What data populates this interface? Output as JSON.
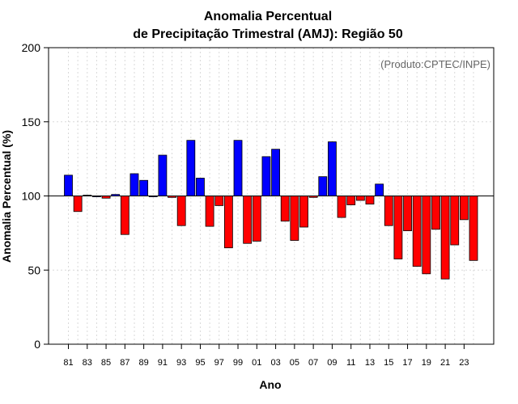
{
  "chart_data": {
    "type": "bar",
    "title": "Anomalia Percentual",
    "subtitle": "de Precipitação Trimestral (AMJ): Região 50",
    "xlabel": "Ano",
    "ylabel": "Anomalia Percentual (%)",
    "credit": "(Produto:CPTEC/INPE)",
    "ylim": [
      0,
      200
    ],
    "yticks": [
      "0",
      "50",
      "100",
      "150",
      "200"
    ],
    "baseline": 100,
    "categories": [
      "1981",
      "1982",
      "1983",
      "1984",
      "1985",
      "1986",
      "1987",
      "1988",
      "1989",
      "1990",
      "1991",
      "1992",
      "1993",
      "1994",
      "1995",
      "1996",
      "1997",
      "1998",
      "1999",
      "2000",
      "2001",
      "2002",
      "2003",
      "2004",
      "2005",
      "2006",
      "2007",
      "2008",
      "2009",
      "2010",
      "2011",
      "2012",
      "2013",
      "2014",
      "2015",
      "2016",
      "2017",
      "2018",
      "2019",
      "2020",
      "2021",
      "2022",
      "2023",
      "2024"
    ],
    "xtick_labels": [
      "81",
      "83",
      "85",
      "87",
      "89",
      "91",
      "93",
      "95",
      "97",
      "99",
      "01",
      "03",
      "05",
      "07",
      "09",
      "11",
      "13",
      "15",
      "17",
      "19",
      "21",
      "23"
    ],
    "values": [
      114,
      89.5,
      100.5,
      100,
      98.5,
      101,
      74,
      115,
      110.5,
      100,
      127.5,
      99,
      80,
      137.5,
      112,
      79.5,
      93.5,
      65,
      137.5,
      68,
      69.5,
      126.5,
      131.5,
      83,
      70,
      79,
      99,
      113,
      136.5,
      85.5,
      94,
      97,
      94.5,
      108,
      80,
      57.5,
      76.5,
      52.5,
      47.5,
      77.5,
      44,
      67,
      84,
      56.5
    ],
    "grid": true,
    "colors": {
      "above": "#0000ff",
      "below": "#ff0000",
      "edge": "#000000",
      "grid": "#d9d9d9"
    }
  }
}
